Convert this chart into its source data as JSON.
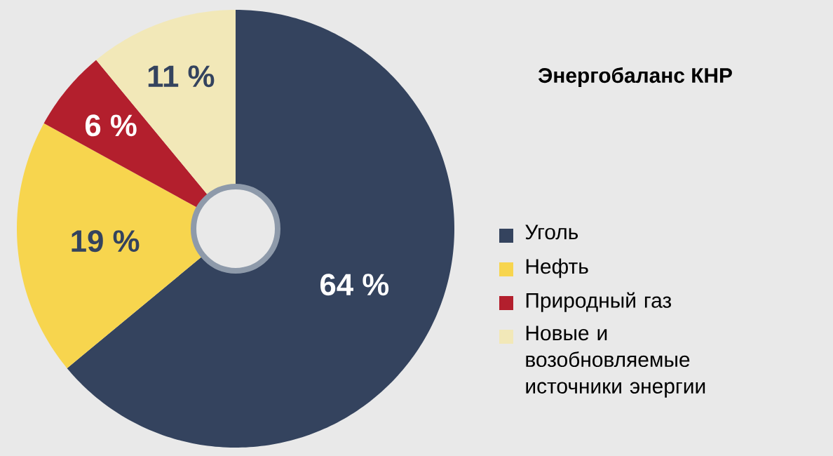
{
  "chart_data": {
    "type": "donut",
    "title": "Энергобаланс КНР",
    "categories": [
      "Уголь",
      "Нефть",
      "Природный газ",
      "Новые и возобновляемые источники энергии"
    ],
    "values": [
      64,
      19,
      6,
      11
    ],
    "value_labels": [
      "64 %",
      "19 %",
      "6 %",
      "11 %"
    ],
    "colors": [
      "#34435e",
      "#f7d54e",
      "#b31f2d",
      "#f2e8b8"
    ],
    "legend": "right"
  }
}
